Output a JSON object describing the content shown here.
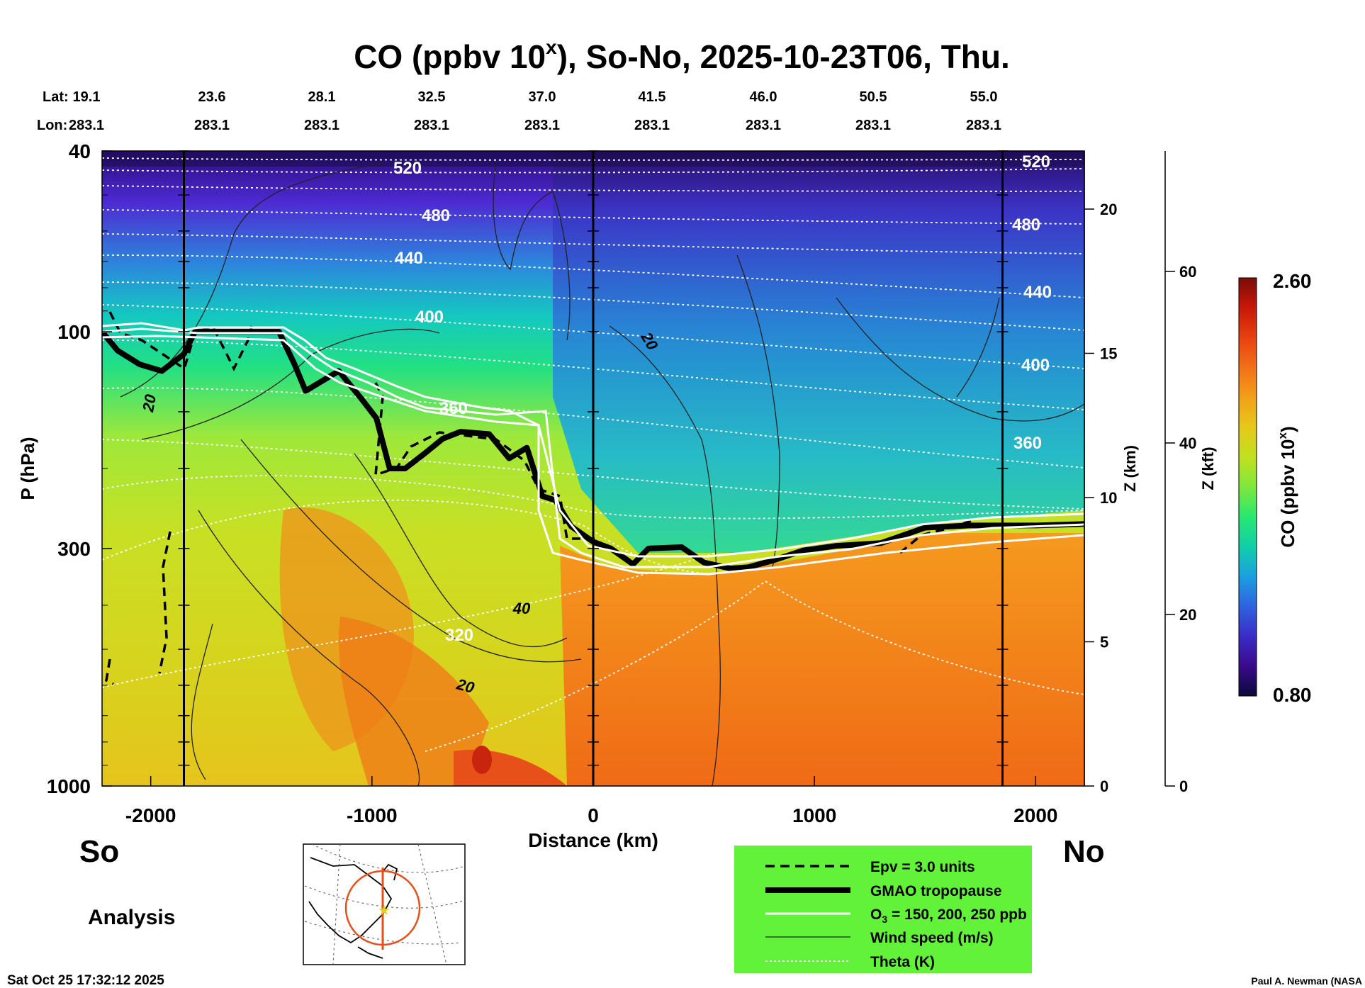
{
  "chart_data": {
    "type": "heatmap",
    "title": "CO (ppbv 10",
    "title_sup": "x",
    "title_rest": "), So-No, 2025-10-23T06, Thu.",
    "xlabel": "Distance (km)",
    "ylabel": "P (hPa)",
    "y2label": "Z (km)",
    "y3label": "Z (kft)",
    "x_range": [
      -2220,
      2220
    ],
    "y_range": [
      1000,
      40
    ],
    "x_ticks": [
      -2000,
      -1000,
      0,
      1000,
      2000
    ],
    "y_ticks": [
      40,
      100,
      300,
      1000
    ],
    "z_km_ticks": [
      0,
      5,
      10,
      15,
      20
    ],
    "z_kft_ticks": [
      0,
      20,
      40,
      60
    ],
    "lat_label": "Lat:",
    "lon_label": "Lon:",
    "lat": [
      "19.1",
      "23.6",
      "28.1",
      "32.5",
      "37.0",
      "41.5",
      "46.0",
      "50.5",
      "55.0"
    ],
    "lon": [
      "283.1",
      "283.1",
      "283.1",
      "283.1",
      "283.1",
      "283.1",
      "283.1",
      "283.1",
      "283.1"
    ],
    "vertical_lines_km": [
      -1850,
      0,
      1850
    ],
    "colorbar": {
      "label": "CO (ppbv 10",
      "label_sup": "x",
      "label_end": ")",
      "min": "0.80",
      "max": "2.60",
      "colors": [
        "#0a0a3a",
        "#3a0a8a",
        "#3a2cc8",
        "#2f62e0",
        "#1aa0e0",
        "#10cfa8",
        "#28e870",
        "#7ee83a",
        "#c0e020",
        "#e6c81a",
        "#f2a018",
        "#f27018",
        "#e84010",
        "#c81808",
        "#7a0c08"
      ]
    },
    "theta_labels": [
      "520",
      "480",
      "440",
      "400",
      "360",
      "320"
    ],
    "wind_labels": [
      "20",
      "40"
    ],
    "tropopause_pressure_hPa": [
      [
        -2220,
        100
      ],
      [
        -2150,
        110
      ],
      [
        -2050,
        118
      ],
      [
        -1950,
        122
      ],
      [
        -1850,
        112
      ],
      [
        -1800,
        100
      ],
      [
        -1500,
        100
      ],
      [
        -1420,
        100
      ],
      [
        -1350,
        118
      ],
      [
        -1300,
        135
      ],
      [
        -1150,
        122
      ],
      [
        -1050,
        140
      ],
      [
        -980,
        155
      ],
      [
        -920,
        200
      ],
      [
        -850,
        200
      ],
      [
        -760,
        185
      ],
      [
        -680,
        172
      ],
      [
        -600,
        166
      ],
      [
        -470,
        168
      ],
      [
        -380,
        190
      ],
      [
        -300,
        180
      ],
      [
        -230,
        230
      ],
      [
        -170,
        235
      ],
      [
        -100,
        268
      ],
      [
        0,
        290
      ],
      [
        80,
        300
      ],
      [
        180,
        325
      ],
      [
        250,
        300
      ],
      [
        400,
        298
      ],
      [
        500,
        322
      ],
      [
        620,
        332
      ],
      [
        700,
        330
      ],
      [
        820,
        318
      ],
      [
        950,
        303
      ],
      [
        1100,
        296
      ],
      [
        1300,
        292
      ],
      [
        1500,
        270
      ],
      [
        1700,
        267
      ],
      [
        2000,
        267
      ],
      [
        2220,
        265
      ]
    ],
    "legend": {
      "epv": "Epv = 3.0 units",
      "tropopause": "GMAO tropopause",
      "o3_prefix": "O",
      "o3_sub": "3",
      "o3_suffix": " = 150, 200, 250 ppb",
      "wind": "Wind speed (m/s)",
      "theta": "Theta (K)",
      "bg_color": "#62f23a"
    },
    "side_labels": {
      "south": "So",
      "north": "No",
      "analysis": "Analysis"
    },
    "footer": {
      "timestamp": "Sat Oct 25 17:32:12 2025",
      "credit": "Paul A. Newman (NASA"
    }
  }
}
